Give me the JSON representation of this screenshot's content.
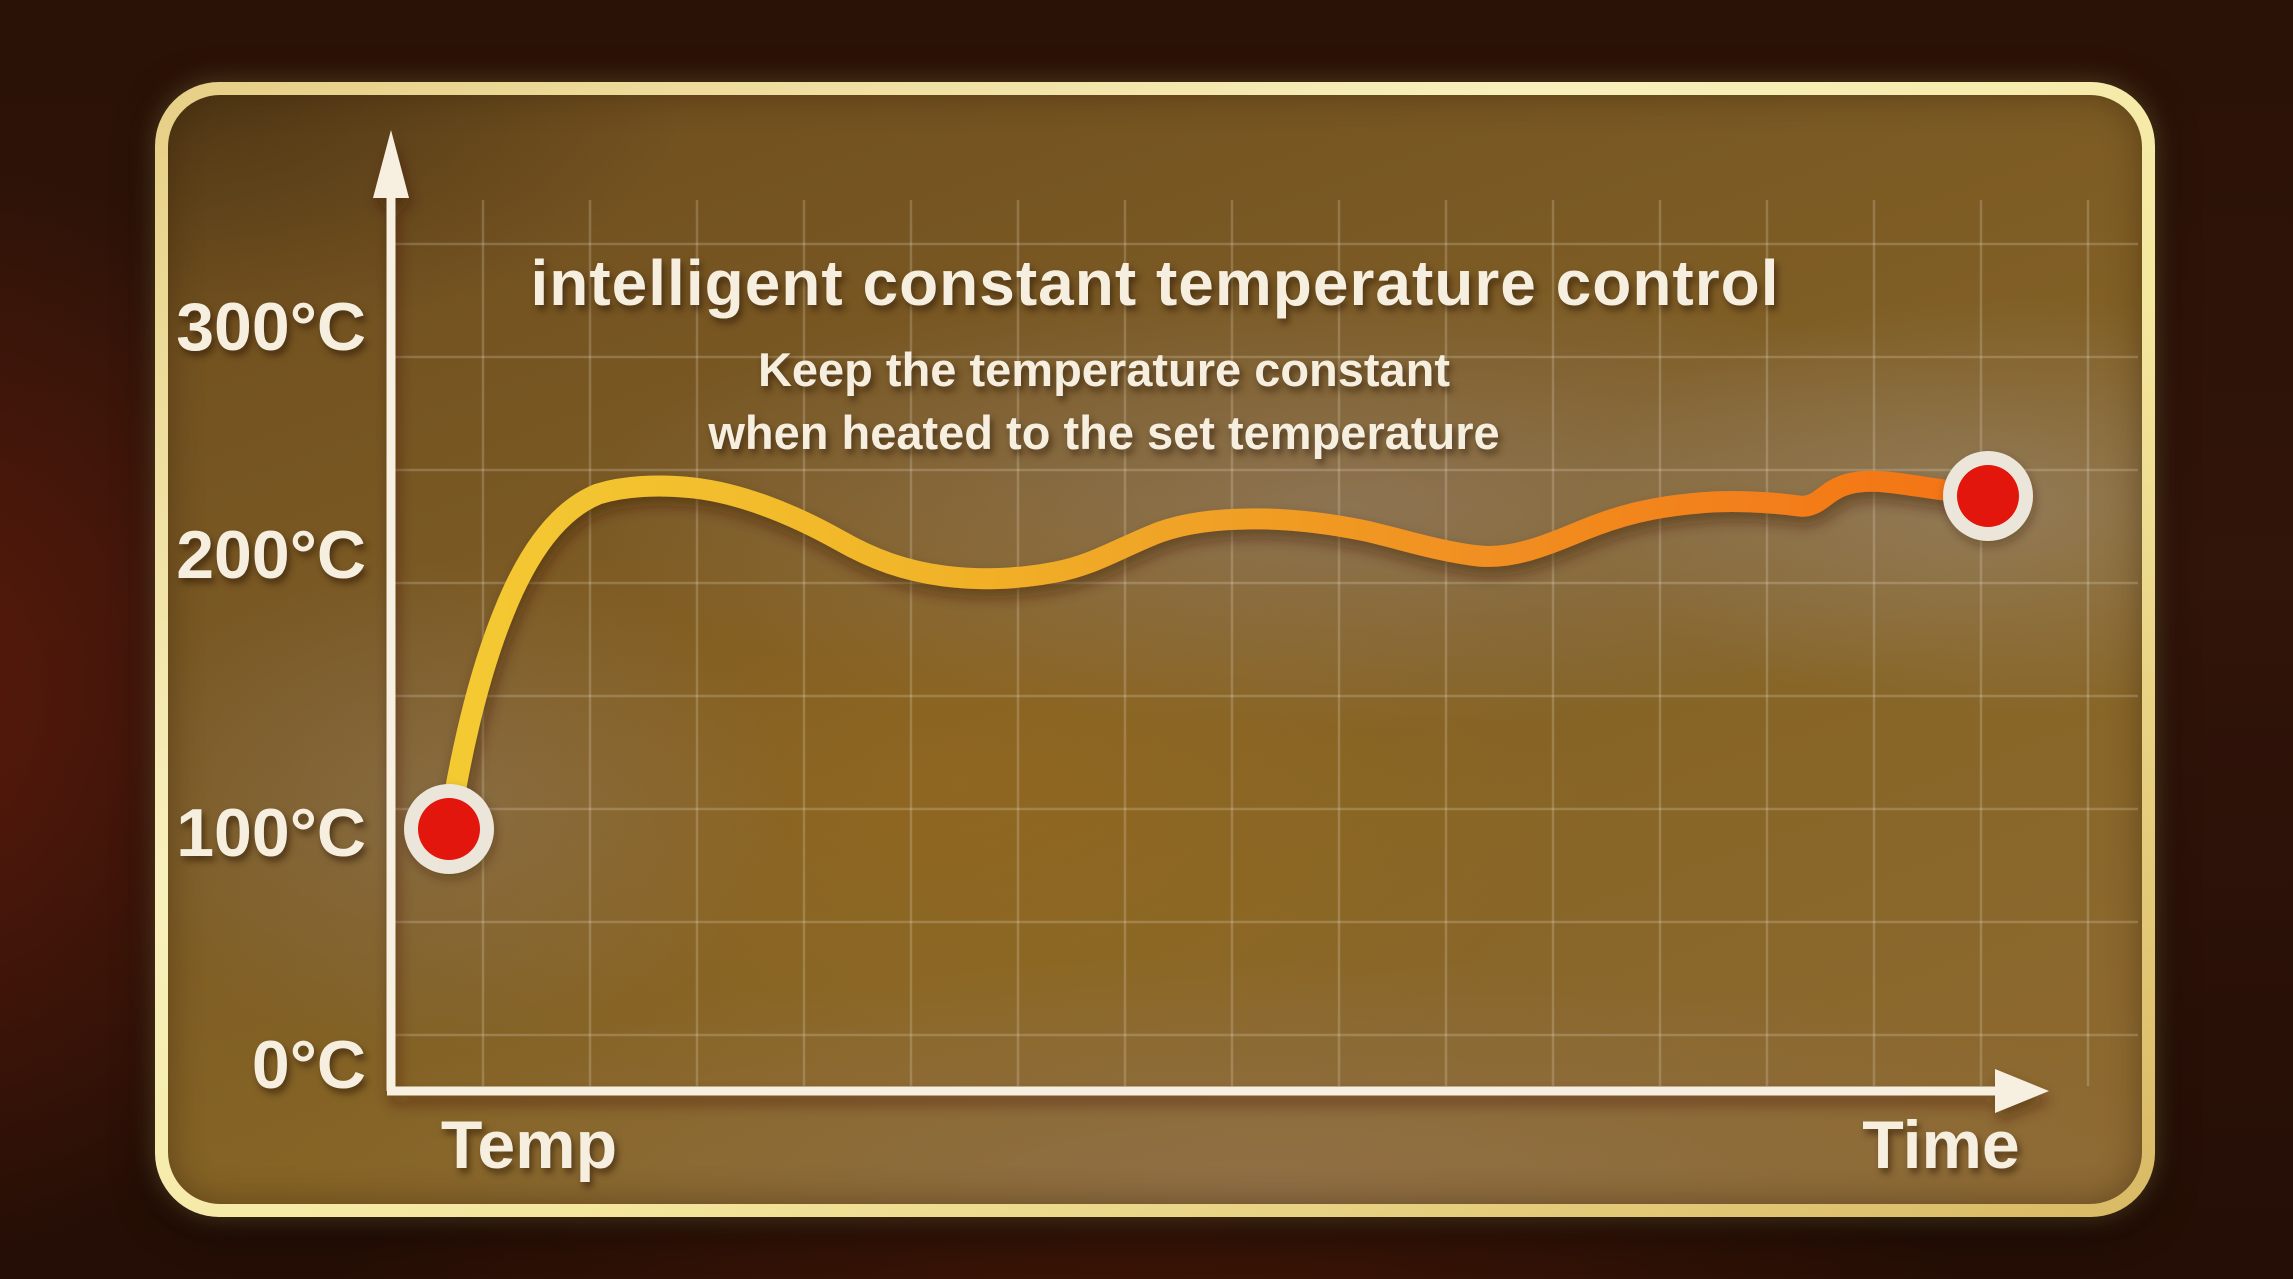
{
  "title": "intelligent constant temperature control",
  "subtitle_line1": "Keep the temperature constant",
  "subtitle_line2": "when heated to the set temperature",
  "y_axis": {
    "label": "Temp",
    "ticks": [
      "300°C",
      "200°C",
      "100°C",
      "0°C"
    ]
  },
  "x_axis": {
    "label": "Time"
  },
  "markers": {
    "start_value": "100°C",
    "end_value": "≈225°C"
  },
  "colors": {
    "curve_start": "#f4ca33",
    "curve_mid": "#f09b24",
    "curve_end": "#f47314",
    "marker_red": "#e2150f",
    "marker_ring": "#ece5d9",
    "axis": "#f7f0e1",
    "panel_border_gold": "#f4e79e",
    "text_cream": "#f6efdf",
    "outer_background": "#2a1206"
  },
  "chart_data": {
    "type": "line",
    "title": "intelligent constant temperature control",
    "subtitle": "Keep the temperature constant when heated to the set temperature",
    "xlabel": "Time",
    "ylabel": "Temp",
    "x_axis_ticks": [],
    "y_axis_ticks_c": [
      0,
      100,
      200,
      300
    ],
    "ylim": [
      0,
      330
    ],
    "grid": true,
    "legend": false,
    "x_unit": "relative time 0–100 (axis unlabeled)",
    "series": [
      {
        "name": "temperature",
        "points": [
          [
            0,
            100
          ],
          [
            3,
            130
          ],
          [
            6,
            185
          ],
          [
            9,
            215
          ],
          [
            12,
            228
          ],
          [
            15,
            230
          ],
          [
            18,
            229
          ],
          [
            22,
            222
          ],
          [
            26,
            207
          ],
          [
            30,
            196
          ],
          [
            34,
            191
          ],
          [
            38,
            190
          ],
          [
            42,
            193
          ],
          [
            46,
            203
          ],
          [
            50,
            212
          ],
          [
            54,
            215
          ],
          [
            57,
            214
          ],
          [
            61,
            206
          ],
          [
            64,
            199
          ],
          [
            67,
            198
          ],
          [
            70,
            204
          ],
          [
            73,
            213
          ],
          [
            76,
            219
          ],
          [
            79,
            222
          ],
          [
            82,
            222
          ],
          [
            84,
            218
          ],
          [
            86,
            225
          ],
          [
            88,
            230
          ],
          [
            90,
            231
          ],
          [
            93,
            229
          ],
          [
            96,
            227
          ],
          [
            100,
            225
          ]
        ]
      }
    ],
    "markers": [
      {
        "x": 0,
        "y": 100,
        "type": "start-dot",
        "color": "#e2150f"
      },
      {
        "x": 100,
        "y": 225,
        "type": "end-dot",
        "color": "#e2150f"
      }
    ]
  }
}
